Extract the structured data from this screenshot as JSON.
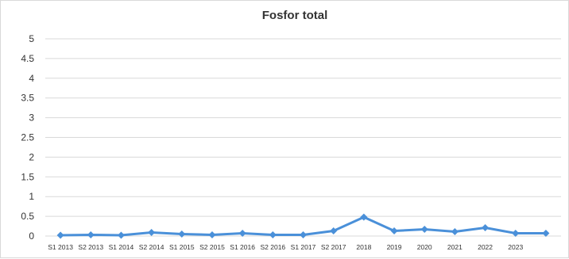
{
  "chart_data": {
    "type": "line",
    "title": "Fosfor total",
    "xlabel": "",
    "ylabel": "",
    "ylim": [
      0,
      5
    ],
    "yticks": [
      "0",
      "0.5",
      "1",
      "1.5",
      "2",
      "2.5",
      "3",
      "3.5",
      "4",
      "4.5",
      "5"
    ],
    "categories": [
      "S1 2013",
      "S2 2013",
      "S1 2014",
      "S2 2014",
      "S1 2015",
      "S2 2015",
      "S1 2016",
      "S2 2016",
      "S1 2017",
      "S2 2017",
      "2018",
      "2019",
      "2020",
      "2021",
      "2022",
      "2023",
      ""
    ],
    "series": [
      {
        "color": "#4a90d9",
        "values": [
          0.02,
          0.03,
          0.02,
          0.09,
          0.05,
          0.03,
          0.07,
          0.03,
          0.03,
          0.13,
          0.48,
          0.13,
          0.17,
          0.11,
          0.21,
          0.07,
          0.07
        ]
      }
    ],
    "grid": true,
    "legend": "none"
  }
}
